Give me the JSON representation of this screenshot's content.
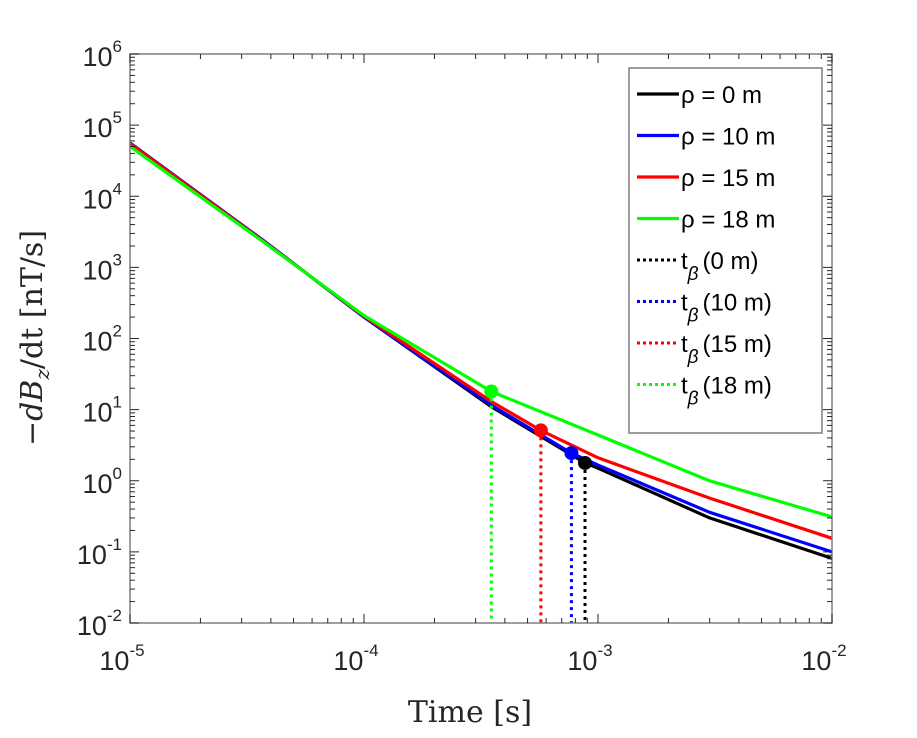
{
  "chart_data": {
    "type": "line",
    "title": "",
    "xlabel": "Time [s]",
    "ylabel_parts": {
      "prefix": "−dB",
      "sub": "z",
      "suffix": "/dt [nT/s]"
    },
    "xscale": "log",
    "yscale": "log",
    "xlim": [
      1e-05,
      0.01
    ],
    "ylim": [
      0.01,
      1000000.0
    ],
    "x_ticks": [
      {
        "base": "10",
        "exp": "-5",
        "v": 1e-05
      },
      {
        "base": "10",
        "exp": "-4",
        "v": 0.0001
      },
      {
        "base": "10",
        "exp": "-3",
        "v": 0.001
      },
      {
        "base": "10",
        "exp": "-2",
        "v": 0.01
      }
    ],
    "y_ticks": [
      {
        "base": "10",
        "exp": "-2",
        "v": 0.01
      },
      {
        "base": "10",
        "exp": "-1",
        "v": 0.1
      },
      {
        "base": "10",
        "exp": "0",
        "v": 1
      },
      {
        "base": "10",
        "exp": "1",
        "v": 10
      },
      {
        "base": "10",
        "exp": "2",
        "v": 100
      },
      {
        "base": "10",
        "exp": "3",
        "v": 1000
      },
      {
        "base": "10",
        "exp": "4",
        "v": 10000.0
      },
      {
        "base": "10",
        "exp": "5",
        "v": 100000.0
      },
      {
        "base": "10",
        "exp": "6",
        "v": 1000000.0
      }
    ],
    "grid": false,
    "legend_position": "top-right",
    "series": [
      {
        "name": "ρ = 0 m",
        "color": "#000000",
        "x": [
          1e-05,
          3.7e-05,
          0.0001,
          0.00035,
          0.00088,
          0.001,
          0.003,
          0.01
        ],
        "y": [
          56000,
          2400,
          200,
          11,
          1.78,
          1.5,
          0.3,
          0.081
        ]
      },
      {
        "name": "ρ = 10 m",
        "color": "#0000ff",
        "x": [
          1e-05,
          3.7e-05,
          0.0001,
          0.00035,
          0.00077,
          0.001,
          0.003,
          0.01
        ],
        "y": [
          56000,
          2400,
          200,
          11.5,
          2.45,
          1.66,
          0.36,
          0.1
        ]
      },
      {
        "name": "ρ = 15 m",
        "color": "#ff0000",
        "x": [
          1e-05,
          3.7e-05,
          0.0001,
          0.00035,
          0.00057,
          0.001,
          0.003,
          0.01
        ],
        "y": [
          55000,
          2350,
          205,
          13,
          5.1,
          2.1,
          0.57,
          0.155
        ]
      },
      {
        "name": "ρ = 18 m",
        "color": "#00ff00",
        "x": [
          1e-05,
          3.7e-05,
          0.0001,
          0.00035,
          0.001,
          0.003,
          0.01
        ],
        "y": [
          50000,
          2300,
          210,
          18,
          4.4,
          1.0,
          0.31
        ]
      }
    ],
    "markers": [
      {
        "name": "t",
        "sub": "β",
        "label": "(0 m)",
        "color": "#000000",
        "x": 0.00088,
        "y": 1.78
      },
      {
        "name": "t",
        "sub": "β",
        "label": "(10 m)",
        "color": "#0000ff",
        "x": 0.00077,
        "y": 2.45
      },
      {
        "name": "t",
        "sub": "β",
        "label": "(15 m)",
        "color": "#ff0000",
        "x": 0.00057,
        "y": 5.1
      },
      {
        "name": "t",
        "sub": "β",
        "label": "(18 m)",
        "color": "#00ff00",
        "x": 0.00035,
        "y": 18
      }
    ]
  }
}
